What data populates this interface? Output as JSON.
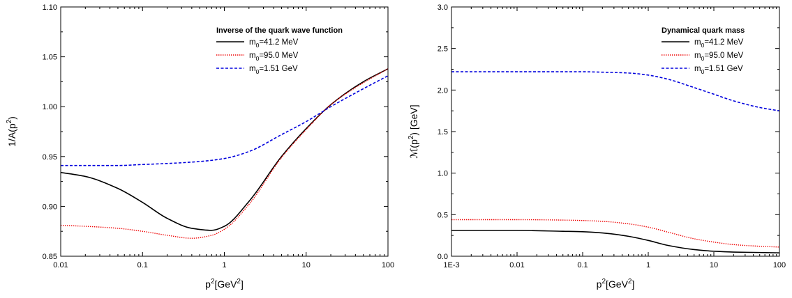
{
  "chart_data": [
    {
      "type": "line",
      "title": "Inverse of the quark wave function",
      "xlabel": "p²[GeV²]",
      "ylabel": "1/A(p²)",
      "xscale": "log",
      "xlim": [
        0.01,
        100
      ],
      "ylim": [
        0.85,
        1.1
      ],
      "xticks": [
        0.01,
        0.1,
        1,
        10,
        100
      ],
      "xtick_labels": [
        "0.01",
        "0.1",
        "1",
        "10",
        "100"
      ],
      "yticks": [
        0.85,
        0.9,
        0.95,
        1.0,
        1.05,
        1.1
      ],
      "ytick_labels": [
        "0.85",
        "0.90",
        "0.95",
        "1.00",
        "1.05",
        "1.10"
      ],
      "legend_position": "top-right",
      "series": [
        {
          "name": "m₀=41.2 MeV",
          "label_base": "m",
          "label_sub": "0",
          "label_rest": "=41.2 MeV",
          "color": "#000000",
          "dash": "solid",
          "x": [
            0.01,
            0.02,
            0.05,
            0.1,
            0.2,
            0.4,
            0.7,
            1,
            2,
            5,
            10,
            20,
            50,
            100
          ],
          "y": [
            0.934,
            0.93,
            0.918,
            0.904,
            0.888,
            0.878,
            0.876,
            0.88,
            0.905,
            0.95,
            0.978,
            1.002,
            1.025,
            1.038
          ]
        },
        {
          "name": "m₀=95.0 MeV",
          "label_base": "m",
          "label_sub": "0",
          "label_rest": "=95.0 MeV",
          "color": "#ee0000",
          "dash": "dotted",
          "x": [
            0.01,
            0.02,
            0.05,
            0.1,
            0.2,
            0.4,
            0.7,
            1,
            2,
            5,
            10,
            20,
            50,
            100
          ],
          "y": [
            0.881,
            0.88,
            0.878,
            0.875,
            0.871,
            0.868,
            0.871,
            0.877,
            0.902,
            0.949,
            0.977,
            1.002,
            1.024,
            1.038
          ]
        },
        {
          "name": "m₀=1.51 GeV",
          "label_base": "m",
          "label_sub": "0",
          "label_rest": "=1.51 GeV",
          "color": "#0000dd",
          "dash": "dashed",
          "x": [
            0.01,
            0.02,
            0.05,
            0.1,
            0.2,
            0.5,
            1,
            2,
            5,
            10,
            20,
            50,
            100
          ],
          "y": [
            0.941,
            0.941,
            0.941,
            0.942,
            0.943,
            0.945,
            0.948,
            0.955,
            0.972,
            0.985,
            1.0,
            1.018,
            1.031
          ]
        }
      ]
    },
    {
      "type": "line",
      "title": "Dynamical quark mass",
      "xlabel": "p²[GeV²]",
      "ylabel": "ℳ(p²) [GeV]",
      "xscale": "log",
      "xlim": [
        0.001,
        100
      ],
      "ylim": [
        0.0,
        3.0
      ],
      "xticks": [
        0.001,
        0.01,
        0.1,
        1,
        10,
        100
      ],
      "xtick_labels": [
        "1E-3",
        "0.01",
        "0.1",
        "1",
        "10",
        "100"
      ],
      "yticks": [
        0.0,
        0.5,
        1.0,
        1.5,
        2.0,
        2.5,
        3.0
      ],
      "ytick_labels": [
        "0.0",
        "0.5",
        "1.0",
        "1.5",
        "2.0",
        "2.5",
        "3.0"
      ],
      "legend_position": "top-right",
      "series": [
        {
          "name": "m₀=41.2 MeV",
          "label_base": "m",
          "label_sub": "0",
          "label_rest": "=41.2 MeV",
          "color": "#000000",
          "dash": "solid",
          "x": [
            0.001,
            0.01,
            0.05,
            0.1,
            0.2,
            0.5,
            1,
            2,
            5,
            10,
            20,
            50,
            100
          ],
          "y": [
            0.31,
            0.31,
            0.3,
            0.295,
            0.28,
            0.24,
            0.19,
            0.13,
            0.08,
            0.06,
            0.05,
            0.045,
            0.04
          ]
        },
        {
          "name": "m₀=95.0 MeV",
          "label_base": "m",
          "label_sub": "0",
          "label_rest": "=95.0 MeV",
          "color": "#ee0000",
          "dash": "dotted",
          "x": [
            0.001,
            0.01,
            0.05,
            0.1,
            0.2,
            0.5,
            1,
            2,
            5,
            10,
            20,
            50,
            100
          ],
          "y": [
            0.44,
            0.44,
            0.435,
            0.43,
            0.42,
            0.39,
            0.35,
            0.29,
            0.21,
            0.17,
            0.14,
            0.12,
            0.11
          ]
        },
        {
          "name": "m₀=1.51 GeV",
          "label_base": "m",
          "label_sub": "0",
          "label_rest": "=1.51 GeV",
          "color": "#0000dd",
          "dash": "dashed",
          "x": [
            0.001,
            0.01,
            0.05,
            0.1,
            0.2,
            0.5,
            1,
            2,
            5,
            10,
            20,
            50,
            100
          ],
          "y": [
            2.22,
            2.22,
            2.22,
            2.22,
            2.215,
            2.205,
            2.18,
            2.13,
            2.03,
            1.95,
            1.87,
            1.79,
            1.75
          ]
        }
      ]
    }
  ]
}
